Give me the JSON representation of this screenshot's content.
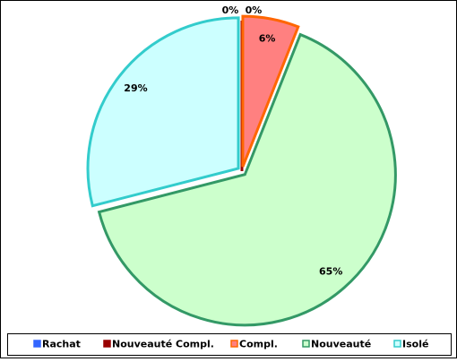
{
  "chart_data": {
    "type": "pie",
    "categories": [
      "Rachat",
      "Nouveauté Compl.",
      "Compl.",
      "Nouveauté",
      "Isolé"
    ],
    "values": [
      0,
      0,
      6,
      65,
      29
    ],
    "value_labels": [
      "0%",
      "0%",
      "6%",
      "65%",
      "29%"
    ],
    "colors": [
      "#3366ff",
      "#990000",
      "#ff8080",
      "#ccffcc",
      "#ccffff"
    ],
    "edge_colors": [
      "#3366ff",
      "#990000",
      "#ff6600",
      "#339966",
      "#33cccc"
    ],
    "legend": "bottom"
  }
}
